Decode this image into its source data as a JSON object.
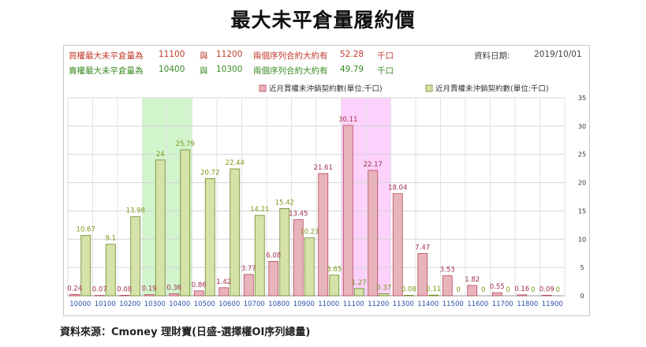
{
  "title": "最大未平倉量履約價",
  "info": {
    "call_label": "買權最大未平倉量為",
    "call_strike1": "11100",
    "conj1": "與",
    "call_strike2": "11200",
    "call_desc": "兩個序列合約大約有",
    "call_value": "52.28",
    "call_unit": "千口",
    "put_label": "賣權最大未平倉量為",
    "put_strike1": "10400",
    "conj2": "與",
    "put_strike2": "10300",
    "put_desc": "兩個序列合約大約有",
    "put_value": "49.79",
    "put_unit": "千口",
    "date_label": "資料日期:",
    "date_value": "2019/10/01"
  },
  "source": "資料來源：Cmoney 理財寶(日盛-選擇權OI序列總量)",
  "colors": {
    "call": "#e8b4bc",
    "call_border": "#b5485b",
    "put": "#d5e2a8",
    "put_border": "#6b8a2a",
    "call_text": "#a0304a",
    "put_text": "#7a9a18",
    "call_highlight": "#fbc9fb",
    "put_highlight": "#c9f2c4"
  },
  "chart_data": {
    "type": "bar",
    "categories": [
      "10000",
      "10100",
      "10200",
      "10300",
      "10400",
      "10500",
      "10600",
      "10700",
      "10800",
      "10900",
      "11000",
      "11100",
      "11200",
      "11300",
      "11400",
      "11500",
      "11600",
      "11700",
      "11800",
      "11900"
    ],
    "series": [
      {
        "name": "近月買權未沖銷契約數(單位:千口)",
        "values": [
          0.24,
          0.07,
          0.08,
          0.19,
          0.36,
          0.86,
          1.42,
          3.77,
          6.08,
          13.45,
          21.61,
          30.11,
          22.17,
          18.04,
          7.47,
          3.53,
          1.82,
          0.55,
          0.16,
          0.09
        ]
      },
      {
        "name": "近月賣權未沖銷契約數(單位:千口)",
        "values": [
          10.67,
          9.1,
          13.98,
          24,
          25.79,
          20.72,
          22.44,
          14.21,
          15.42,
          10.23,
          3.65,
          1.27,
          0.37,
          0.08,
          0.11,
          0,
          0,
          0,
          0,
          0
        ]
      }
    ],
    "call_labels": [
      "0.24",
      "0.07",
      "0.08",
      "0.19",
      "0.36",
      "0.86",
      "1.42",
      "3.77",
      "6.08",
      "13.45",
      "21.61",
      "30.11",
      "22.17",
      "18.04",
      "7.47",
      "3.53",
      "1.82",
      "0.55",
      "0.16",
      "0.09"
    ],
    "put_labels": [
      "10.67",
      "9.1",
      "13.98",
      "24",
      "25.79",
      "20.72",
      "22.44",
      "14.21",
      "15.42",
      "10.23",
      "3.65",
      "1.27",
      "0.37",
      "0.08",
      "0.11",
      "0",
      "0",
      "0",
      "0",
      "0"
    ],
    "yticks": [
      "0",
      "5",
      "10",
      "15",
      "20",
      "25",
      "30",
      "35"
    ],
    "ylim": [
      0,
      35
    ],
    "y_axis": "right",
    "grid": true,
    "legend": "top-right",
    "highlight_call": [
      "11100",
      "11200"
    ],
    "highlight_put": [
      "10300",
      "10400"
    ]
  }
}
